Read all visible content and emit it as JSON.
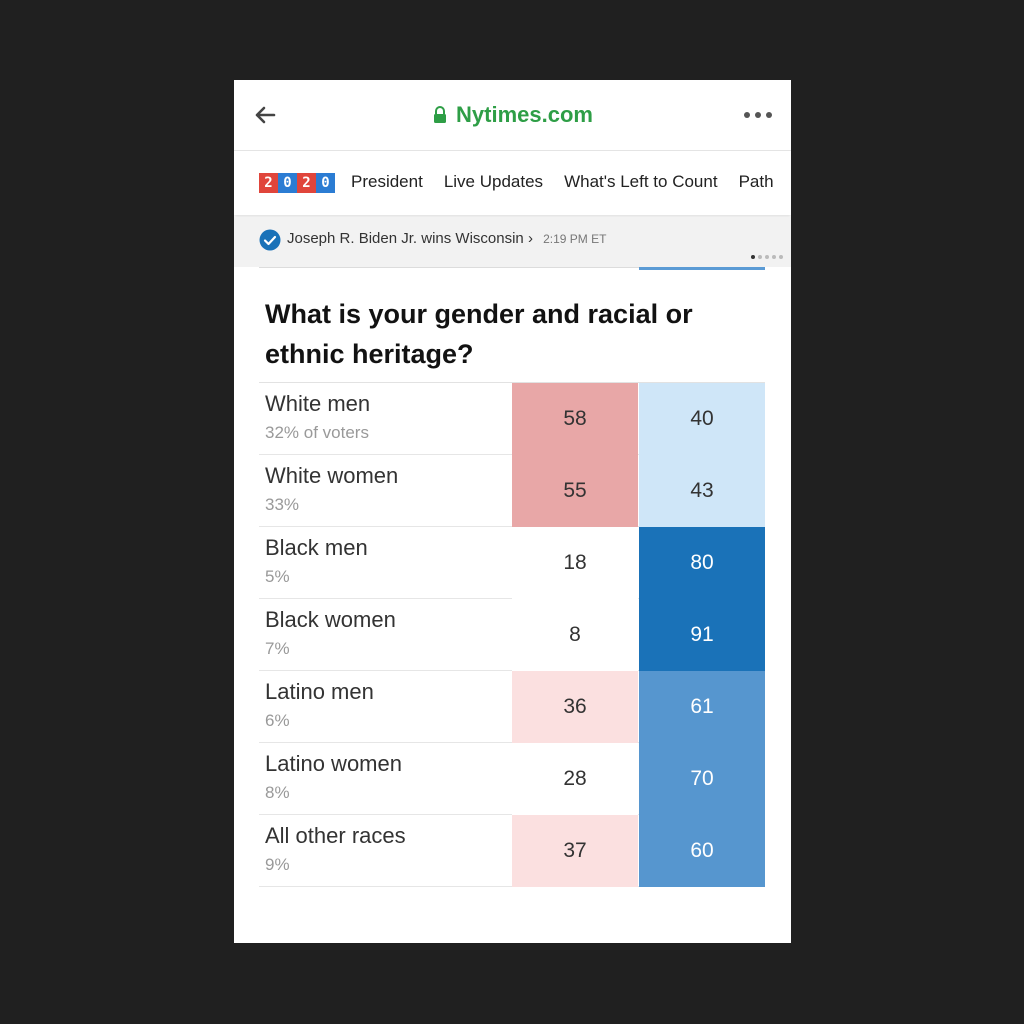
{
  "browser": {
    "url": "Nytimes.com",
    "colors": {
      "url": "#2e9e46"
    }
  },
  "nav": {
    "logo": [
      "2",
      "0",
      "2",
      "0"
    ],
    "logo_colors": [
      "#e0453b",
      "#2b7cd3",
      "#e0453b",
      "#2b7cd3"
    ],
    "items": [
      "President",
      "Live Updates",
      "What's Left to Count",
      "Path"
    ]
  },
  "alert": {
    "text": "Joseph R. Biden Jr. wins Wisconsin",
    "chevron": "›",
    "time": "2:19 PM ET"
  },
  "poll": {
    "question": "What is your gender and racial or ethnic heritage?",
    "rows": [
      {
        "label": "White men",
        "share": "32% of voters",
        "rep": "58",
        "dem": "40",
        "rep_color": "#e8a7a7",
        "dem_color": "#cfe6f8"
      },
      {
        "label": "White women",
        "share": "33%",
        "rep": "55",
        "dem": "43",
        "rep_color": "#e8a7a7",
        "dem_color": "#cfe6f8"
      },
      {
        "label": "Black men",
        "share": "5%",
        "rep": "18",
        "dem": "80",
        "rep_color": "#ffffff",
        "dem_color": "#1a72b8"
      },
      {
        "label": "Black women",
        "share": "7%",
        "rep": "8",
        "dem": "91",
        "rep_color": "#ffffff",
        "dem_color": "#1a72b8"
      },
      {
        "label": "Latino men",
        "share": "6%",
        "rep": "36",
        "dem": "61",
        "rep_color": "#fbe0e0",
        "dem_color": "#5696cf"
      },
      {
        "label": "Latino women",
        "share": "8%",
        "rep": "28",
        "dem": "70",
        "rep_color": "#ffffff",
        "dem_color": "#5696cf"
      },
      {
        "label": "All other races",
        "share": "9%",
        "rep": "37",
        "dem": "60",
        "rep_color": "#fbe0e0",
        "dem_color": "#5696cf"
      }
    ]
  }
}
